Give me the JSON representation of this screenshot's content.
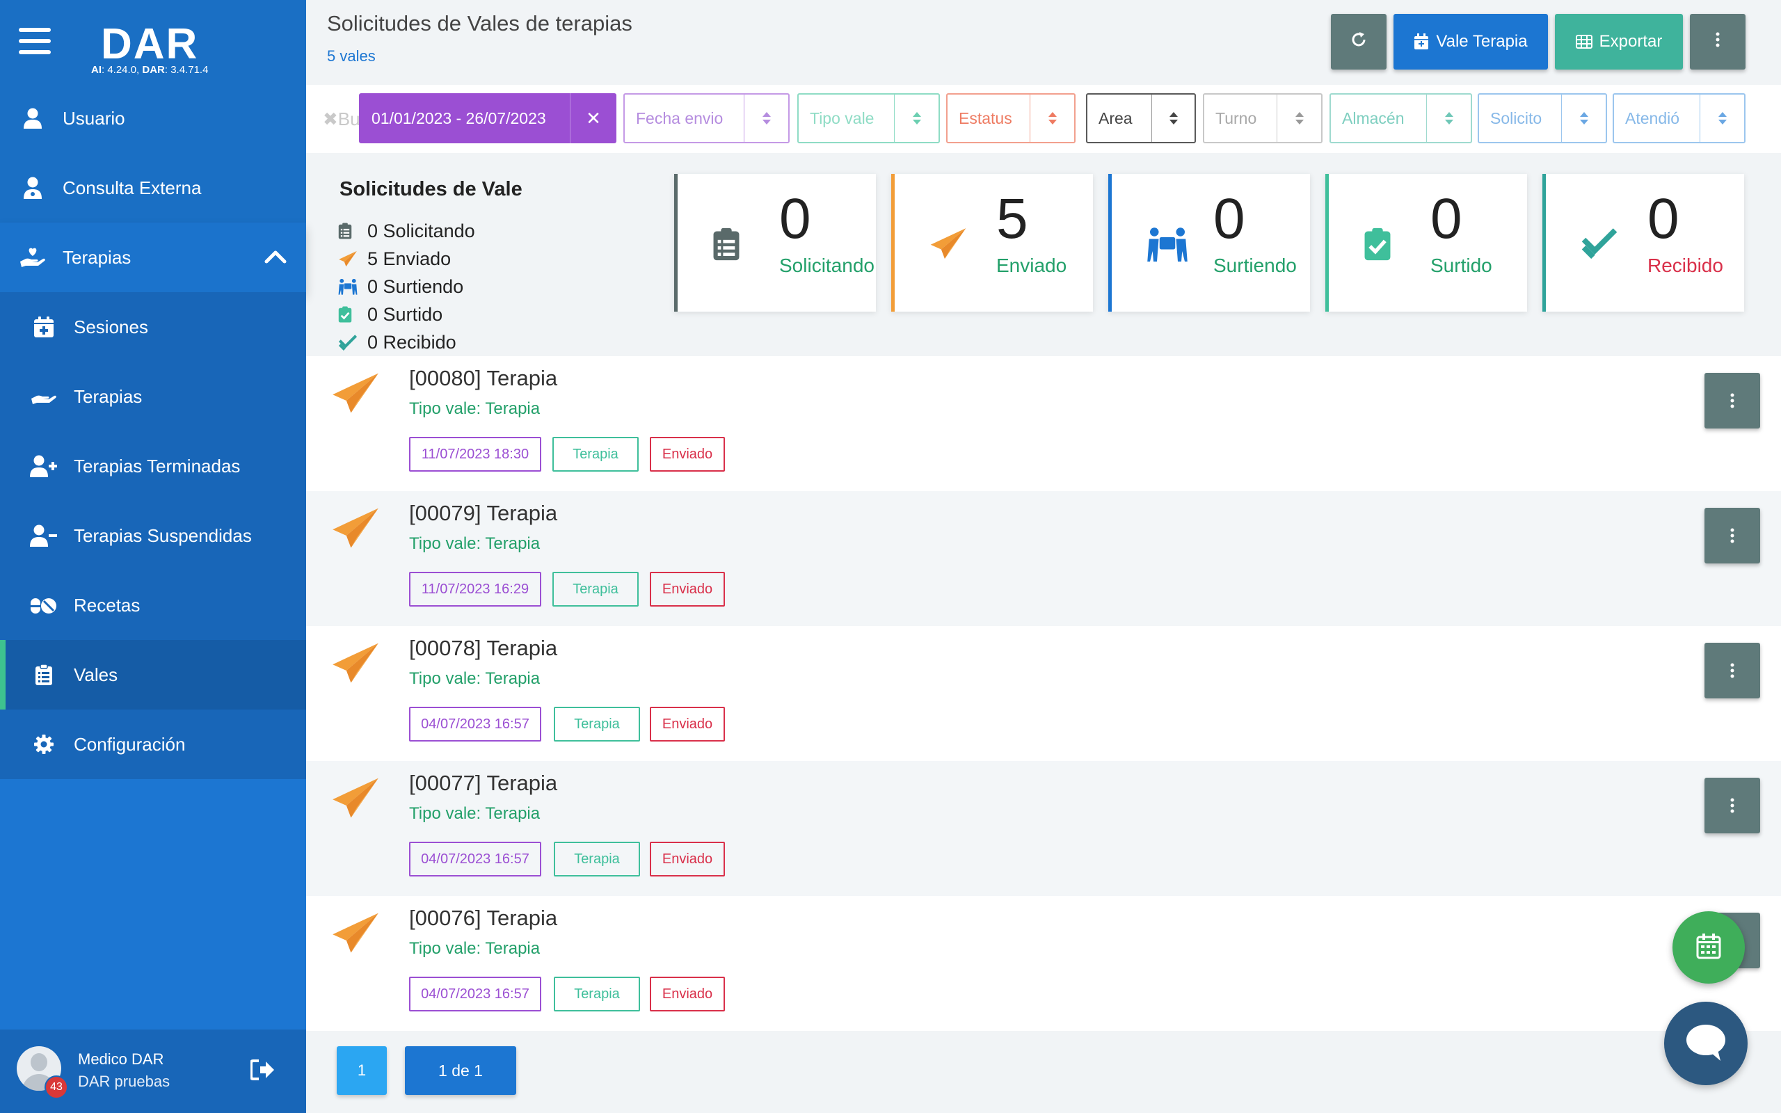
{
  "app": {
    "logo": "DAR",
    "version_ai_label": "AI",
    "version_ai": ": 4.24.0, ",
    "version_dar_label": "DAR",
    "version_dar": ": 3.4.71.4"
  },
  "sidebar": {
    "items": [
      {
        "label": "Usuario",
        "icon": "user-icon"
      },
      {
        "label": "Consulta Externa",
        "icon": "user-doctor-icon"
      },
      {
        "label": "Terapias",
        "icon": "hand-heart-icon",
        "expanded": true
      },
      {
        "label": "Sesiones",
        "icon": "calendar-plus-icon"
      },
      {
        "label": "Terapias",
        "icon": "hand-holding-icon"
      },
      {
        "label": "Terapias Terminadas",
        "icon": "user-plus-icon"
      },
      {
        "label": "Terapias Suspendidas",
        "icon": "user-minus-icon"
      },
      {
        "label": "Recetas",
        "icon": "pills-icon"
      },
      {
        "label": "Vales",
        "icon": "clipboard-list-icon",
        "active": true
      },
      {
        "label": "Configuración",
        "icon": "gear-icon"
      }
    ],
    "user": {
      "name": "Medico DAR",
      "org": "DAR pruebas",
      "notifications": "43"
    }
  },
  "header": {
    "title": "Solicitudes de Vales de terapias",
    "count": "5 vales",
    "buttons": {
      "vale_terapia": "Vale Terapia",
      "exportar": "Exportar"
    }
  },
  "filters": {
    "search_placeholder": "Bu",
    "date_range": "01/01/2023 - 26/07/2023",
    "selects": [
      "Fecha envio",
      "Tipo vale",
      "Estatus",
      "Area",
      "Turno",
      "Almacén",
      "Solicito",
      "Atendió"
    ]
  },
  "summary": {
    "title": "Solicitudes de Vale",
    "items": [
      {
        "count": "0",
        "label": "Solicitando"
      },
      {
        "count": "5",
        "label": "Enviado"
      },
      {
        "count": "0",
        "label": "Surtiendo"
      },
      {
        "count": "0",
        "label": "Surtido"
      },
      {
        "count": "0",
        "label": "Recibido"
      }
    ]
  },
  "colors": {
    "solicitando": "#5a6a6a",
    "enviado": "#f29d38",
    "surtiendo": "#1c76d2",
    "surtido": "#3fbf9b",
    "recibido": "#2fa39a",
    "primary": "#1c76d2",
    "purple": "#9b4fd3"
  },
  "vales": [
    {
      "title": "[00080] Terapia",
      "tipo": "Tipo vale: Terapia",
      "fecha": "11/07/2023 18:30",
      "tipo_tag": "Terapia",
      "estatus": "Enviado"
    },
    {
      "title": "[00079] Terapia",
      "tipo": "Tipo vale: Terapia",
      "fecha": "11/07/2023 16:29",
      "tipo_tag": "Terapia",
      "estatus": "Enviado"
    },
    {
      "title": "[00078] Terapia",
      "tipo": "Tipo vale: Terapia",
      "fecha": "04/07/2023 16:57",
      "tipo_tag": "Terapia",
      "estatus": "Enviado"
    },
    {
      "title": "[00077] Terapia",
      "tipo": "Tipo vale: Terapia",
      "fecha": "04/07/2023 16:57",
      "tipo_tag": "Terapia",
      "estatus": "Enviado"
    },
    {
      "title": "[00076] Terapia",
      "tipo": "Tipo vale: Terapia",
      "fecha": "04/07/2023 16:57",
      "tipo_tag": "Terapia",
      "estatus": "Enviado"
    }
  ],
  "pagination": {
    "current": "1",
    "info": "1 de 1"
  }
}
